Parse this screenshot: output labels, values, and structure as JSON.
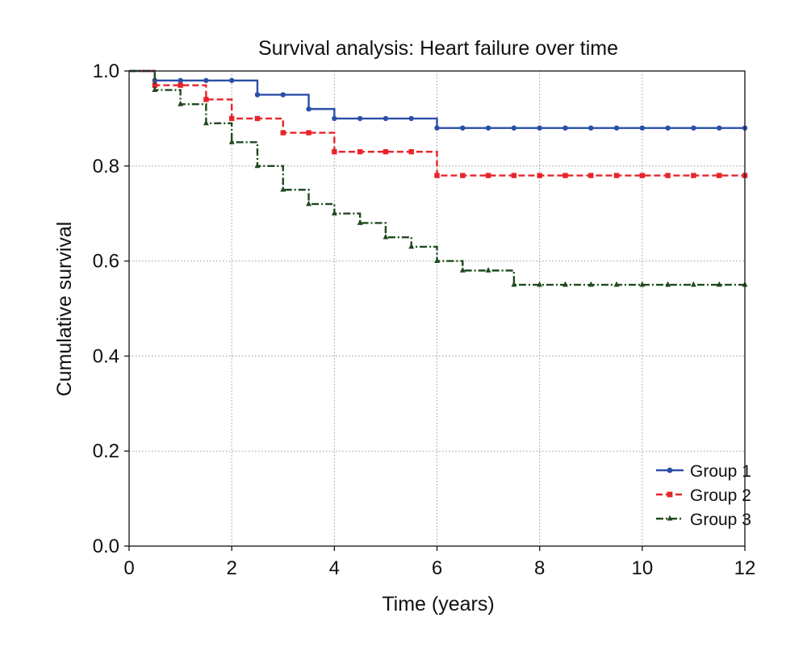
{
  "chart_data": {
    "type": "line",
    "subtype": "kaplan-meier-step",
    "title": "Survival analysis: Heart failure over time",
    "xlabel": "Time (years)",
    "ylabel": "Cumulative survival",
    "xlim": [
      0,
      12
    ],
    "ylim": [
      0,
      1
    ],
    "xticks": [
      0,
      2,
      4,
      6,
      8,
      10,
      12
    ],
    "xtick_labels": [
      "0",
      "2",
      "4",
      "6",
      "8",
      "10",
      "12"
    ],
    "yticks": [
      0,
      0.2,
      0.4,
      0.6,
      0.8,
      1.0
    ],
    "ytick_labels": [
      "0.0",
      "0.2",
      "0.4",
      "0.6",
      "0.8",
      "1.0"
    ],
    "grid": true,
    "legend_position": "bottom-right",
    "series": [
      {
        "name": "Group 1",
        "color": "#2a4fa8",
        "line_style": "solid",
        "marker": "circle",
        "steps": [
          [
            0,
            1.0
          ],
          [
            0.5,
            0.98
          ],
          [
            2.5,
            0.95
          ],
          [
            3.5,
            0.92
          ],
          [
            4,
            0.9
          ],
          [
            6,
            0.88
          ]
        ],
        "markers": [
          [
            0.5,
            0.98
          ],
          [
            1,
            0.98
          ],
          [
            1.5,
            0.98
          ],
          [
            2,
            0.98
          ],
          [
            2.5,
            0.95
          ],
          [
            3,
            0.95
          ],
          [
            3.5,
            0.92
          ],
          [
            4,
            0.9
          ],
          [
            4.5,
            0.9
          ],
          [
            5,
            0.9
          ],
          [
            5.5,
            0.9
          ],
          [
            6,
            0.88
          ],
          [
            6.5,
            0.88
          ],
          [
            7,
            0.88
          ],
          [
            7.5,
            0.88
          ],
          [
            8,
            0.88
          ],
          [
            8.5,
            0.88
          ],
          [
            9,
            0.88
          ],
          [
            9.5,
            0.88
          ],
          [
            10,
            0.88
          ],
          [
            10.5,
            0.88
          ],
          [
            11,
            0.88
          ],
          [
            11.5,
            0.88
          ],
          [
            12,
            0.88
          ]
        ]
      },
      {
        "name": "Group 2",
        "color": "#e8242b",
        "line_style": "dashed",
        "marker": "square",
        "steps": [
          [
            0,
            1.0
          ],
          [
            0.5,
            0.97
          ],
          [
            1.5,
            0.94
          ],
          [
            2,
            0.9
          ],
          [
            3,
            0.87
          ],
          [
            4,
            0.83
          ],
          [
            6,
            0.78
          ]
        ],
        "markers": [
          [
            0.5,
            0.97
          ],
          [
            1,
            0.97
          ],
          [
            1.5,
            0.94
          ],
          [
            2,
            0.9
          ],
          [
            2.5,
            0.9
          ],
          [
            3,
            0.87
          ],
          [
            3.5,
            0.87
          ],
          [
            4,
            0.83
          ],
          [
            4.5,
            0.83
          ],
          [
            5,
            0.83
          ],
          [
            5.5,
            0.83
          ],
          [
            6,
            0.78
          ],
          [
            6.5,
            0.78
          ],
          [
            7,
            0.78
          ],
          [
            7.5,
            0.78
          ],
          [
            8,
            0.78
          ],
          [
            8.5,
            0.78
          ],
          [
            9,
            0.78
          ],
          [
            9.5,
            0.78
          ],
          [
            10,
            0.78
          ],
          [
            10.5,
            0.78
          ],
          [
            11,
            0.78
          ],
          [
            11.5,
            0.78
          ],
          [
            12,
            0.78
          ]
        ]
      },
      {
        "name": "Group 3",
        "color": "#1f4a1f",
        "line_style": "dashdot",
        "marker": "triangle",
        "steps": [
          [
            0,
            1.0
          ],
          [
            0.5,
            0.96
          ],
          [
            1,
            0.93
          ],
          [
            1.5,
            0.89
          ],
          [
            2,
            0.85
          ],
          [
            2.5,
            0.8
          ],
          [
            3,
            0.75
          ],
          [
            3.5,
            0.72
          ],
          [
            4,
            0.7
          ],
          [
            4.5,
            0.68
          ],
          [
            5,
            0.65
          ],
          [
            5.5,
            0.63
          ],
          [
            6,
            0.6
          ],
          [
            6.5,
            0.58
          ],
          [
            7.5,
            0.55
          ]
        ],
        "markers": [
          [
            0.5,
            0.96
          ],
          [
            1,
            0.93
          ],
          [
            1.5,
            0.89
          ],
          [
            2,
            0.85
          ],
          [
            2.5,
            0.8
          ],
          [
            3,
            0.75
          ],
          [
            3.5,
            0.72
          ],
          [
            4,
            0.7
          ],
          [
            4.5,
            0.68
          ],
          [
            5,
            0.65
          ],
          [
            5.5,
            0.63
          ],
          [
            6,
            0.6
          ],
          [
            6.5,
            0.58
          ],
          [
            7,
            0.58
          ],
          [
            7.5,
            0.55
          ],
          [
            8,
            0.55
          ],
          [
            8.5,
            0.55
          ],
          [
            9,
            0.55
          ],
          [
            9.5,
            0.55
          ],
          [
            10,
            0.55
          ],
          [
            10.5,
            0.55
          ],
          [
            11,
            0.55
          ],
          [
            11.5,
            0.55
          ],
          [
            12,
            0.55
          ]
        ]
      }
    ]
  }
}
